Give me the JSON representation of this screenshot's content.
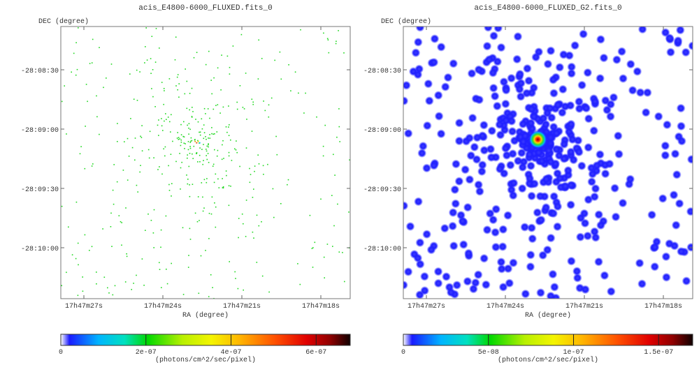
{
  "chart_data": [
    {
      "type": "heatmap",
      "title": "acis_E4800-6000_FLUXED.fits_0",
      "xlabel": "RA (degree)",
      "ylabel": "DEC (degree)",
      "x_ticks": [
        "17h47m27s",
        "17h47m24s",
        "17h47m21s",
        "17h47m18s"
      ],
      "y_ticks": [
        "-28:08:30",
        "-28:09:00",
        "-28:09:30",
        "-28:10:00"
      ],
      "colorbar": {
        "label": "(photons/cm^2/sec/pixel)",
        "ticks": [
          "0",
          "2e-07",
          "4e-07",
          "6e-07"
        ],
        "tick_values": [
          0,
          2e-07,
          4e-07,
          6e-07
        ],
        "range": [
          0,
          6.8e-07
        ]
      },
      "style": "sparse-points"
    },
    {
      "type": "heatmap",
      "title": "acis_E4800-6000_FLUXED_G2.fits_0",
      "xlabel": "RA (degree)",
      "ylabel": "DEC (degree)",
      "x_ticks": [
        "17h47m27s",
        "17h47m24s",
        "17h47m21s",
        "17h47m18s"
      ],
      "y_ticks": [
        "-28:08:30",
        "-28:09:00",
        "-28:09:30",
        "-28:10:00"
      ],
      "colorbar": {
        "label": "(photons/cm^2/sec/pixel)",
        "ticks": [
          "0",
          "5e-08",
          "1e-07",
          "1.5e-07"
        ],
        "tick_values": [
          0,
          5e-08,
          1e-07,
          1.5e-07
        ],
        "range": [
          0,
          1.7e-07
        ]
      },
      "style": "smoothed-blobs"
    }
  ]
}
